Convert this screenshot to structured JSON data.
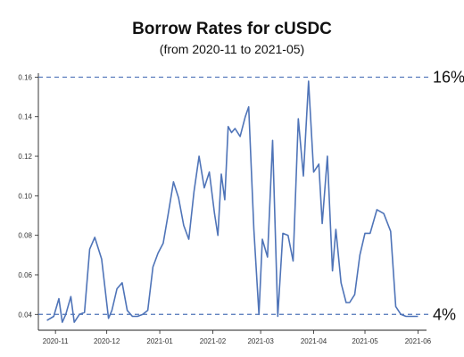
{
  "chart_data": {
    "type": "line",
    "title": "Borrow Rates for cUSDC",
    "subtitle": "(from 2020-11 to 2021-05)",
    "xlabel": "",
    "ylabel": "",
    "ylim": [
      0.032,
      0.162
    ],
    "grid": false,
    "legend": "none",
    "x_ticks": [
      "2020-11",
      "2020-12",
      "2021-01",
      "2021-02",
      "2021-03",
      "2021-04",
      "2021-05",
      "2021-06"
    ],
    "y_ticks": [
      "0.04",
      "0.06",
      "0.08",
      "0.10",
      "0.12",
      "0.14",
      "0.16"
    ],
    "y_tick_values": [
      0.04,
      0.06,
      0.08,
      0.1,
      0.12,
      0.14,
      0.16
    ],
    "line_color": "#4f74b8",
    "reference_color": "#4f74b8",
    "series": [
      {
        "x": [
          "2020-10-27",
          "2020-10-31",
          "2020-11-03",
          "2020-11-05",
          "2020-11-07",
          "2020-11-10",
          "2020-11-12",
          "2020-11-15",
          "2020-11-18",
          "2020-11-21",
          "2020-11-24",
          "2020-11-28",
          "2020-12-02",
          "2020-12-04",
          "2020-12-07",
          "2020-12-10",
          "2020-12-13",
          "2020-12-16",
          "2020-12-19",
          "2020-12-22",
          "2020-12-25",
          "2020-12-28",
          "2020-12-31",
          "2021-01-03",
          "2021-01-06",
          "2021-01-09",
          "2021-01-12",
          "2021-01-15",
          "2021-01-18",
          "2021-01-21",
          "2021-01-24",
          "2021-01-27",
          "2021-01-30",
          "2021-02-02",
          "2021-02-04",
          "2021-02-06",
          "2021-02-08",
          "2021-02-10",
          "2021-02-12",
          "2021-02-14",
          "2021-02-17",
          "2021-02-20",
          "2021-02-22",
          "2021-02-25",
          "2021-02-28",
          "2021-03-02",
          "2021-03-05",
          "2021-03-08",
          "2021-03-11",
          "2021-03-14",
          "2021-03-17",
          "2021-03-20",
          "2021-03-23",
          "2021-03-26",
          "2021-03-29",
          "2021-04-01",
          "2021-04-04",
          "2021-04-06",
          "2021-04-09",
          "2021-04-12",
          "2021-04-14",
          "2021-04-17",
          "2021-04-20",
          "2021-04-22",
          "2021-04-25",
          "2021-04-28",
          "2021-05-01",
          "2021-05-04",
          "2021-05-08",
          "2021-05-12",
          "2021-05-16",
          "2021-05-19",
          "2021-05-22",
          "2021-05-25",
          "2021-05-28",
          "2021-06-01"
        ],
        "values": [
          0.037,
          0.039,
          0.048,
          0.036,
          0.04,
          0.049,
          0.036,
          0.04,
          0.041,
          0.073,
          0.079,
          0.068,
          0.038,
          0.042,
          0.053,
          0.056,
          0.042,
          0.039,
          0.039,
          0.04,
          0.042,
          0.064,
          0.071,
          0.076,
          0.091,
          0.107,
          0.099,
          0.085,
          0.078,
          0.102,
          0.12,
          0.104,
          0.112,
          0.091,
          0.08,
          0.111,
          0.098,
          0.135,
          0.132,
          0.134,
          0.13,
          0.14,
          0.145,
          0.083,
          0.04,
          0.078,
          0.069,
          0.128,
          0.039,
          0.081,
          0.08,
          0.067,
          0.139,
          0.11,
          0.158,
          0.112,
          0.116,
          0.086,
          0.12,
          0.062,
          0.083,
          0.056,
          0.046,
          0.046,
          0.05,
          0.07,
          0.081,
          0.081,
          0.093,
          0.091,
          0.082,
          0.044,
          0.04,
          0.039,
          0.039,
          0.039
        ]
      }
    ],
    "reference_lines": [
      {
        "value": 0.16,
        "label": "16%"
      },
      {
        "value": 0.04,
        "label": "4%"
      }
    ]
  }
}
